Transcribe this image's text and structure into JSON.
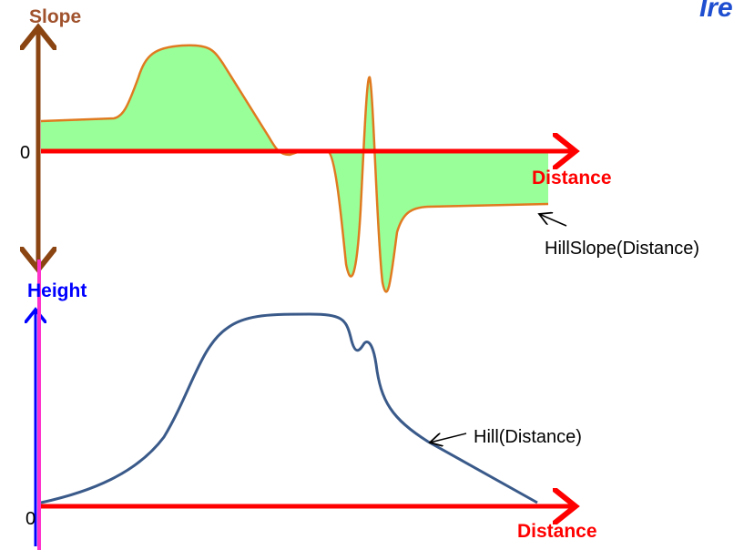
{
  "header": {
    "corner_text": "Ire"
  },
  "slope_plot": {
    "y_axis_label": "Slope",
    "origin_label": "0",
    "x_axis_label": "Distance",
    "curve_label": "HillSlope(Distance)"
  },
  "height_plot": {
    "y_axis_label": "Height",
    "origin_label": "0",
    "x_axis_label": "Distance",
    "curve_label": "Hill(Distance)"
  }
}
